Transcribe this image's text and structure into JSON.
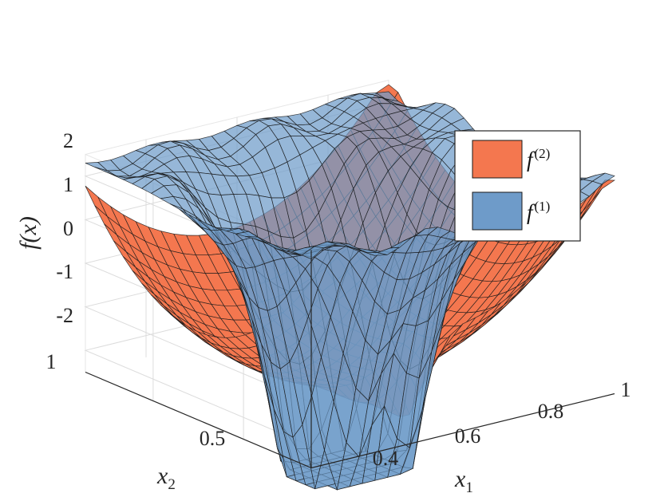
{
  "chart_data": {
    "type": "surface3d",
    "title": "",
    "zlabel": "f(x)",
    "xlabel": "x_1",
    "ylabel": "x_2",
    "xlim": [
      0.3,
      1.0
    ],
    "ylim": [
      0.3,
      1.0
    ],
    "zlim": [
      -2.5,
      2.5
    ],
    "x_ticks": [
      "0.4",
      "0.6",
      "0.8",
      "1"
    ],
    "y_ticks": [
      "0.5",
      "1"
    ],
    "z_ticks": [
      "2",
      "1",
      "0",
      "-1",
      "-2"
    ],
    "grid": true,
    "legend_position": "top-right",
    "series": [
      {
        "name": "f(2)",
        "label_base": "f",
        "label_sup": "(2)",
        "color": "#F4774F",
        "description": "smooth bowl-shaped surface, low in center (about -2.3), rising to edges; sharp dip at x1≈0.5, x2≈0.45"
      },
      {
        "name": "f(1)",
        "label_base": "f",
        "label_sup": "(1)",
        "color": "#6E9BC9",
        "description": "semi-transparent rugged surface, high along outer rim (about 2.3), deep trough (about -4) near center"
      }
    ]
  }
}
